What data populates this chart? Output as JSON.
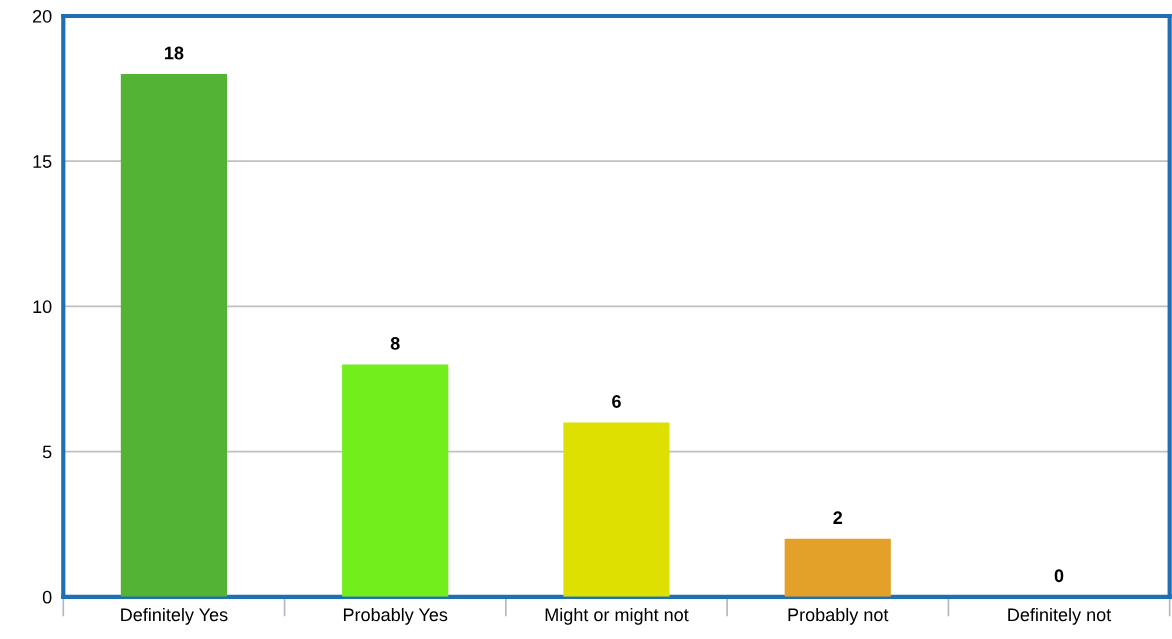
{
  "chart_data": {
    "type": "bar",
    "categories": [
      "Definitely Yes",
      "Probably Yes",
      "Might or might not",
      "Probably not",
      "Definitely not"
    ],
    "values": [
      18,
      8,
      6,
      2,
      0
    ],
    "colors": [
      "#52b335",
      "#72ee1c",
      "#dde000",
      "#e4a12a",
      "#c0c0c0"
    ],
    "ylim": [
      0,
      20
    ],
    "yticks": [
      0,
      5,
      10,
      15,
      20
    ],
    "grid": "y",
    "data_labels": true
  }
}
